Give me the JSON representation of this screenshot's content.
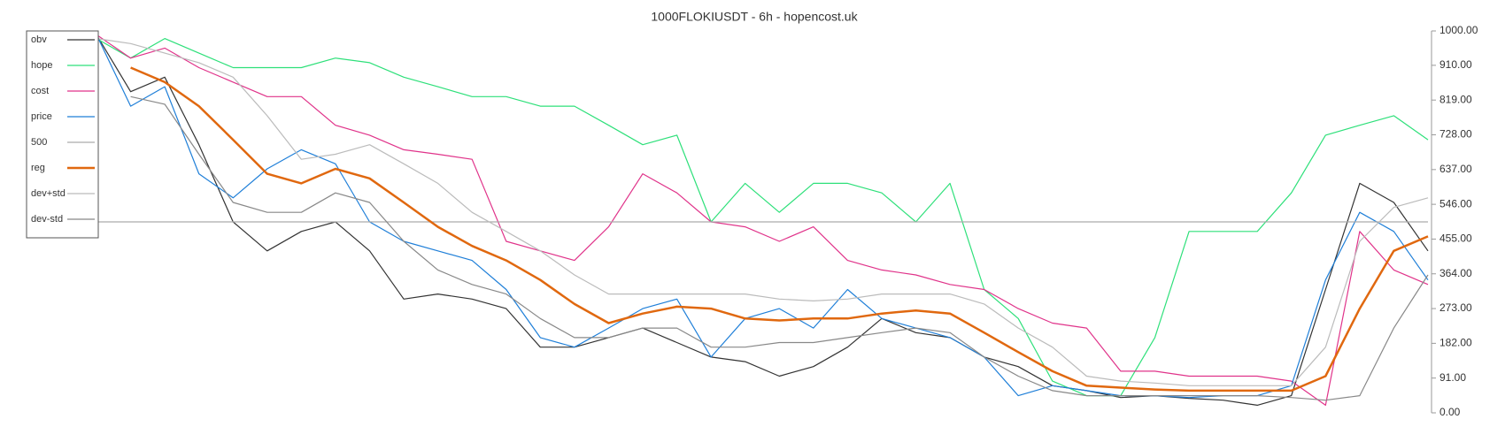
{
  "chart_data": {
    "type": "line",
    "title": "1000FLOKIUSDT - 6h - hopencost.uk",
    "ylim": [
      0,
      1000
    ],
    "yticks": [
      {
        "value": 0,
        "label": "0.00"
      },
      {
        "value": 91,
        "label": "91.00"
      },
      {
        "value": 182,
        "label": "182.00"
      },
      {
        "value": 273,
        "label": "273.00"
      },
      {
        "value": 364,
        "label": "364.00"
      },
      {
        "value": 455,
        "label": "455.00"
      },
      {
        "value": 546,
        "label": "546.00"
      },
      {
        "value": 637,
        "label": "637.00"
      },
      {
        "value": 728,
        "label": "728.00"
      },
      {
        "value": 819,
        "label": "819.00"
      },
      {
        "value": 910,
        "label": "910.00"
      },
      {
        "value": 1000,
        "label": "1000.00"
      }
    ],
    "legend": "upper left",
    "series": [
      {
        "name": "obv",
        "color": "#333333",
        "width": 1.2,
        "values": [
          990,
          841,
          879,
          702,
          500,
          424,
          475,
          500,
          424,
          298,
          311,
          298,
          273,
          172,
          172,
          197,
          222,
          184,
          146,
          134,
          96,
          121,
          172,
          247,
          210,
          197,
          146,
          121,
          71,
          58,
          40,
          45,
          38,
          33,
          20,
          45,
          323,
          601,
          551,
          424
        ]
      },
      {
        "name": "hope",
        "color": "#2ee07a",
        "width": 1.2,
        "values": [
          980,
          929,
          980,
          942,
          904,
          904,
          904,
          929,
          917,
          879,
          854,
          828,
          828,
          803,
          803,
          753,
          702,
          727,
          500,
          601,
          525,
          601,
          601,
          576,
          500,
          601,
          323,
          247,
          83,
          45,
          45,
          197,
          475,
          475,
          475,
          576,
          727,
          753,
          778,
          715
        ]
      },
      {
        "name": "cost",
        "color": "#e0338a",
        "width": 1.2,
        "values": [
          990,
          929,
          955,
          904,
          866,
          828,
          828,
          753,
          727,
          689,
          677,
          664,
          449,
          424,
          399,
          487,
          626,
          576,
          500,
          487,
          449,
          487,
          399,
          374,
          361,
          336,
          323,
          273,
          235,
          222,
          109,
          109,
          96,
          96,
          96,
          83,
          20,
          475,
          374,
          336
        ]
      },
      {
        "name": "price",
        "color": "#1f7fd8",
        "width": 1.2,
        "values": [
          990,
          803,
          854,
          626,
          563,
          639,
          689,
          652,
          500,
          449,
          424,
          399,
          323,
          197,
          172,
          222,
          273,
          298,
          146,
          247,
          273,
          222,
          323,
          247,
          222,
          197,
          146,
          45,
          71,
          58,
          45,
          45,
          40,
          45,
          45,
          71,
          348,
          525,
          475,
          348
        ]
      },
      {
        "name": "500",
        "color": "#aaaaaa",
        "width": 1.2,
        "values": [
          500,
          500,
          500,
          500,
          500,
          500,
          500,
          500,
          500,
          500,
          500,
          500,
          500,
          500,
          500,
          500,
          500,
          500,
          500,
          500,
          500,
          500,
          500,
          500,
          500,
          500,
          500,
          500,
          500,
          500,
          500,
          500,
          500,
          500,
          500,
          500,
          500,
          500,
          500,
          500
        ]
      },
      {
        "name": "reg",
        "color": "#e0680f",
        "width": 2.5,
        "values": [
          null,
          904,
          866,
          803,
          715,
          626,
          601,
          639,
          614,
          551,
          487,
          437,
          399,
          348,
          285,
          235,
          260,
          278,
          273,
          247,
          242,
          247,
          247,
          260,
          268,
          260,
          210,
          159,
          109,
          71,
          66,
          61,
          58,
          58,
          58,
          58,
          96,
          273,
          424,
          462
        ]
      },
      {
        "name": "dev+std",
        "color": "#bbbbbb",
        "width": 1.2,
        "values": [
          980,
          967,
          942,
          917,
          879,
          778,
          664,
          677,
          702,
          652,
          601,
          525,
          475,
          424,
          361,
          311,
          311,
          311,
          311,
          311,
          298,
          293,
          298,
          311,
          311,
          311,
          285,
          222,
          172,
          96,
          83,
          78,
          71,
          71,
          71,
          71,
          172,
          449,
          538,
          563
        ]
      },
      {
        "name": "dev-std",
        "color": "#888888",
        "width": 1.2,
        "values": [
          null,
          828,
          808,
          677,
          551,
          525,
          525,
          576,
          551,
          449,
          374,
          336,
          311,
          247,
          197,
          197,
          222,
          222,
          172,
          172,
          184,
          184,
          197,
          210,
          222,
          210,
          146,
          96,
          58,
          45,
          45,
          45,
          45,
          45,
          45,
          40,
          33,
          45,
          222,
          361
        ]
      }
    ]
  }
}
